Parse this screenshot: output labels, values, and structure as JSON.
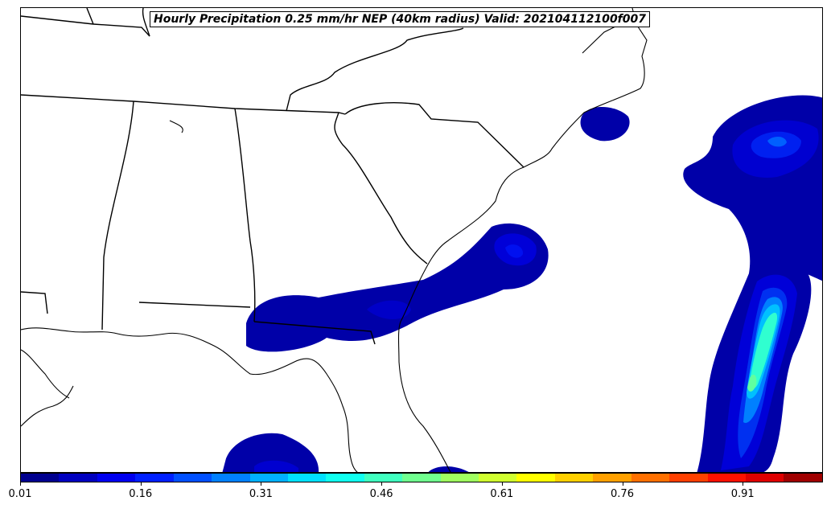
{
  "title": "Hourly Precipitation 0.25 mm/hr NEP (40km radius) Valid: 202104112100f007",
  "colorbar": {
    "ticks": [
      "0.01",
      "0.16",
      "0.31",
      "0.46",
      "0.61",
      "0.76",
      "0.91"
    ],
    "tick_values": [
      0.01,
      0.16,
      0.31,
      0.46,
      0.61,
      0.76,
      0.91
    ],
    "range": [
      0.01,
      1.01
    ],
    "colors": [
      "#00008f",
      "#0000bf",
      "#0000ef",
      "#0020ff",
      "#0050ff",
      "#0080ff",
      "#00b0ff",
      "#00e0ff",
      "#10ffef",
      "#40ffbf",
      "#70ff8f",
      "#a0ff60",
      "#d0ff30",
      "#ffff00",
      "#ffd000",
      "#ffa000",
      "#ff7000",
      "#ff4000",
      "#ff1000",
      "#df0000",
      "#a00000"
    ]
  },
  "map": {
    "region": "Southeastern United States",
    "probability_colors": {
      "low": "#0000a8",
      "mid": "#0030e8",
      "high": "#00a0ff",
      "peak": "#40ffb0"
    }
  }
}
